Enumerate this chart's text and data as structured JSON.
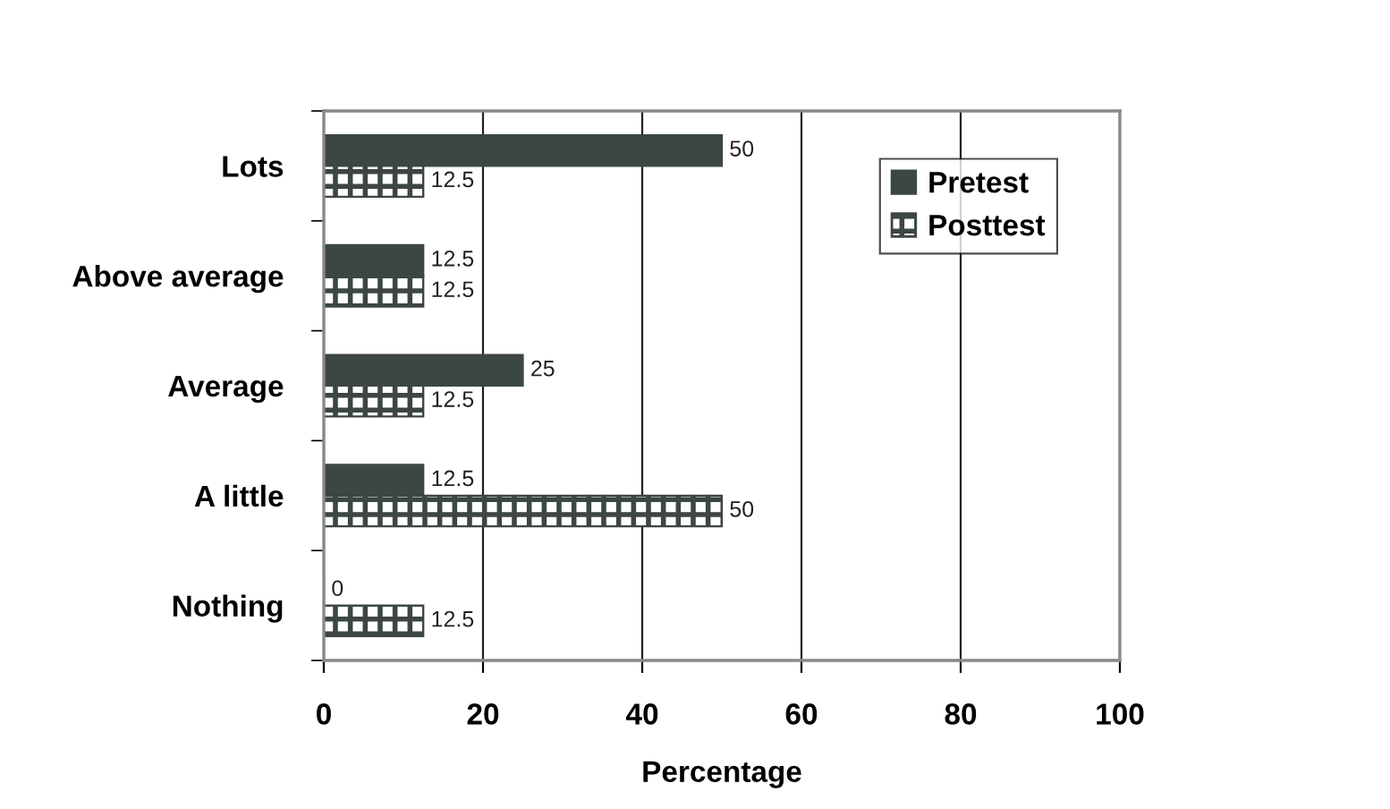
{
  "chart_data": {
    "type": "bar",
    "orientation": "horizontal",
    "xlabel": "Percentage",
    "categories": [
      "Lots",
      "Above average",
      "Average",
      "A little",
      "Nothing"
    ],
    "series": [
      {
        "name": "Pretest",
        "color": "#3c4643",
        "values": [
          50,
          12.5,
          25,
          12.5,
          0
        ]
      },
      {
        "name": "Posttest",
        "color": "#3c4643",
        "values": [
          12.5,
          12.5,
          12.5,
          50,
          12.5
        ]
      }
    ],
    "xlim": [
      0,
      100
    ],
    "xticks": [
      0,
      20,
      40,
      60,
      80,
      100
    ],
    "grid": "x",
    "legend": "top right",
    "data_labels": true
  }
}
